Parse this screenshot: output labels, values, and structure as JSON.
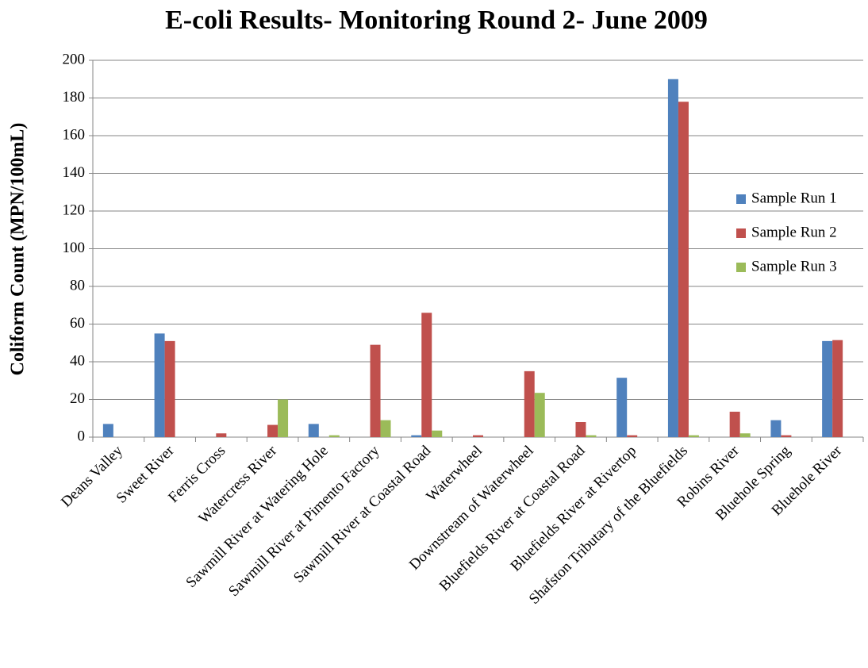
{
  "chart_data": {
    "type": "bar",
    "title": "E-coli Results- Monitoring Round 2- June 2009",
    "ylabel": "Coliform Count (MPN/100mL)",
    "categories": [
      "Deans Valley",
      "Sweet River",
      "Ferris Cross",
      "Watercress River",
      "Sawmill River at Watering Hole",
      "Sawmill River at Pimento Factory",
      "Sawmill River at Coastal Road",
      "Waterwheel",
      "Downstream of Waterwheel",
      "Bluefields River at Coastal Road",
      "Bluefields River at Rivertop",
      "Shafston Tributary of the Bluefields",
      "Robins River",
      "Bluehole Spring",
      "Bluehole River"
    ],
    "series": [
      {
        "name": "Sample Run 1",
        "color": "#4f81bd",
        "values": [
          7,
          55,
          0,
          0,
          7,
          0,
          1,
          0,
          0,
          0,
          31.5,
          190,
          0,
          9,
          51
        ]
      },
      {
        "name": "Sample Run 2",
        "color": "#c0504d",
        "values": [
          0,
          51,
          2,
          6.5,
          0,
          49,
          66,
          1,
          35,
          8,
          1,
          178,
          13.5,
          1,
          51.5
        ]
      },
      {
        "name": "Sample Run 3",
        "color": "#9bbb59",
        "values": [
          0,
          0,
          0,
          20,
          1,
          9,
          3.5,
          0,
          23.5,
          1,
          0,
          1,
          2,
          0,
          0
        ]
      }
    ],
    "ylim": [
      0,
      200
    ],
    "yticks": [
      0,
      20,
      40,
      60,
      80,
      100,
      120,
      140,
      160,
      180,
      200
    ],
    "grid": true,
    "legend": "right"
  }
}
